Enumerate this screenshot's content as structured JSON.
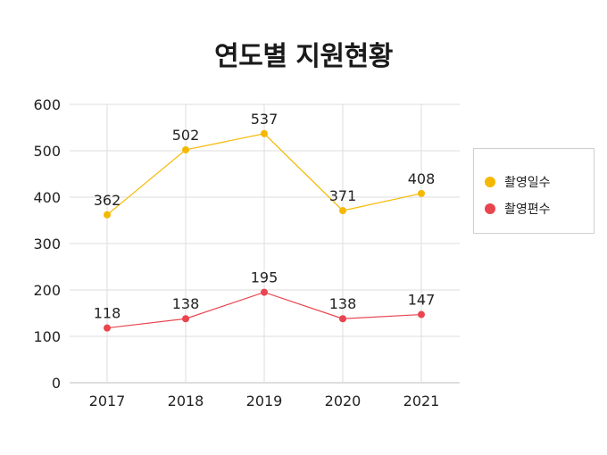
{
  "chart_data": {
    "type": "line",
    "title": "연도별 지원현황",
    "xlabel": "",
    "ylabel": "",
    "categories": [
      "2017",
      "2018",
      "2019",
      "2020",
      "2021"
    ],
    "ylim": [
      0,
      600
    ],
    "yticks": [
      0,
      100,
      200,
      300,
      400,
      500,
      600
    ],
    "grid": true,
    "legend_position": "right",
    "series": [
      {
        "name": "촬영일수",
        "color": "#f5b800",
        "values": [
          362,
          502,
          537,
          371,
          408
        ]
      },
      {
        "name": "촬영편수",
        "color": "#e8454f",
        "values": [
          118,
          138,
          195,
          138,
          147
        ]
      }
    ]
  }
}
